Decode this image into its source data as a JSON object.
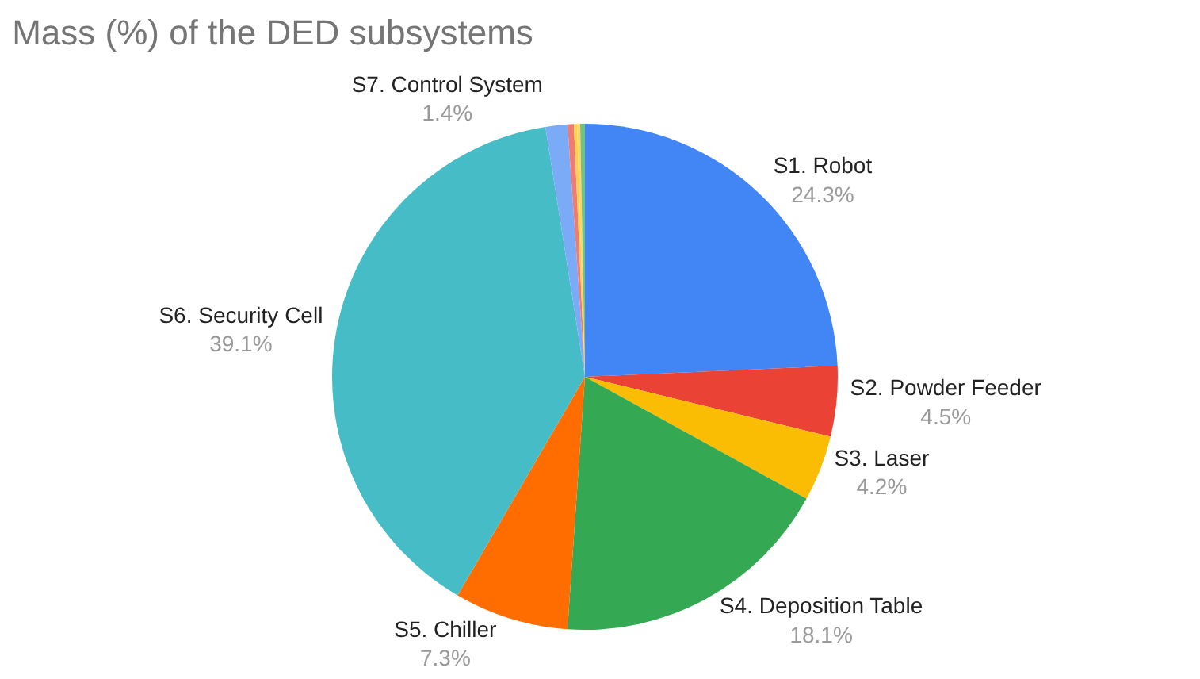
{
  "chart_data": {
    "type": "pie",
    "title": "Mass (%) of the DED subsystems",
    "categories": [
      "S1. Robot",
      "S2. Powder Feeder",
      "S3. Laser",
      "S4. Deposition Table",
      "S5. Chiller",
      "S6. Security Cell",
      "S7. Control System",
      null,
      null,
      null,
      null
    ],
    "values": [
      24.3,
      4.5,
      4.2,
      18.1,
      7.3,
      39.1,
      1.4,
      0.4,
      0.2,
      0.2,
      0.3
    ],
    "value_labels": [
      "24.3%",
      "4.5%",
      "4.2%",
      "18.1%",
      "7.3%",
      "39.1%",
      "1.4%",
      null,
      null,
      null,
      null
    ],
    "colors": [
      "#4285f4",
      "#ea4335",
      "#fbbc04",
      "#34a853",
      "#ff6d01",
      "#46bdc6",
      "#7baaf7",
      "#f07b72",
      "#fcd04f",
      "#ffd666",
      "#71c287"
    ],
    "legend": false
  }
}
